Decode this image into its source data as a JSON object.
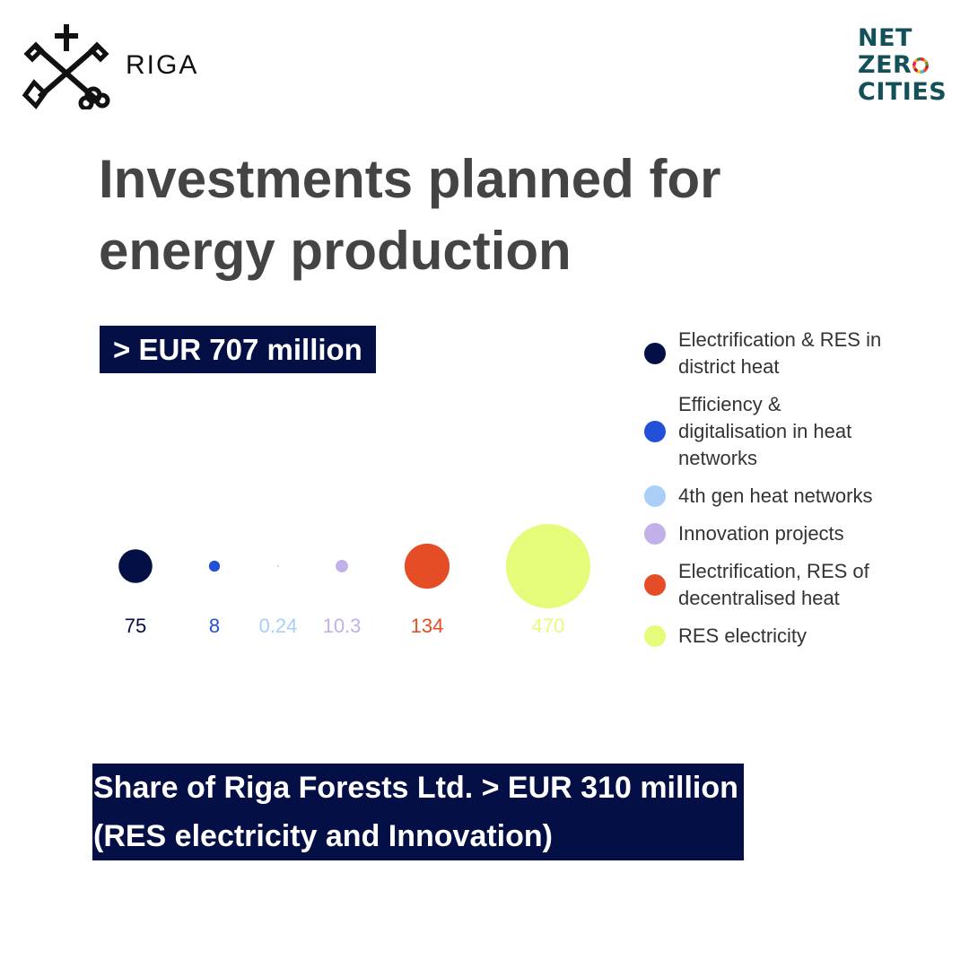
{
  "header": {
    "city_logo_icon": "riga-crossed-keys-logo-icon",
    "city_name": "RIGA",
    "partner_logo": {
      "line1": "NET",
      "line2_prefix": "ZER",
      "line2_ring_icon": "sdg-color-ring-icon",
      "line3": "CITIES",
      "color": "#14505a"
    }
  },
  "title": {
    "line1": "Investments planned for",
    "line2": "energy production"
  },
  "total_label": "> EUR 707 million",
  "chart_data": {
    "type": "scatter",
    "encoding": "bubble area proportional to value",
    "unit": "EUR million",
    "categories": [
      "Electrification & RES in district heat",
      "Efficiency & digitalisation in heat networks",
      "4th gen heat networks",
      "Innovation projects",
      "Electrification, RES of decentralised heat",
      "RES electricity"
    ],
    "values": [
      75,
      8,
      0.24,
      10.3,
      134,
      470
    ],
    "value_labels": [
      "75",
      "8",
      "0.24",
      "10.3",
      "134",
      "470"
    ],
    "colors": [
      "#030f45",
      "#2350d8",
      "#a9cff9",
      "#c1b0ea",
      "#e44d26",
      "#e4fc7a"
    ],
    "legend": {
      "position": "right",
      "items": [
        {
          "label": "Electrification & RES in district heat",
          "color": "#030f45"
        },
        {
          "label": "Efficiency & digitalisation in heat networks",
          "color": "#2350d8"
        },
        {
          "label": "4th gen heat networks",
          "color": "#a9cff9"
        },
        {
          "label": "Innovation projects",
          "color": "#c1b0ea"
        },
        {
          "label": "Electrification, RES of decentralised heat",
          "color": "#e44d26"
        },
        {
          "label": "RES electricity",
          "color": "#e4fc7a"
        }
      ]
    }
  },
  "share": {
    "line1": "Share of Riga Forests Ltd. > EUR 310 million",
    "line2": "(RES electricity and Innovation)"
  },
  "colors": {
    "title": "#444444",
    "box_background": "#030f45",
    "box_text": "#ffffff"
  }
}
